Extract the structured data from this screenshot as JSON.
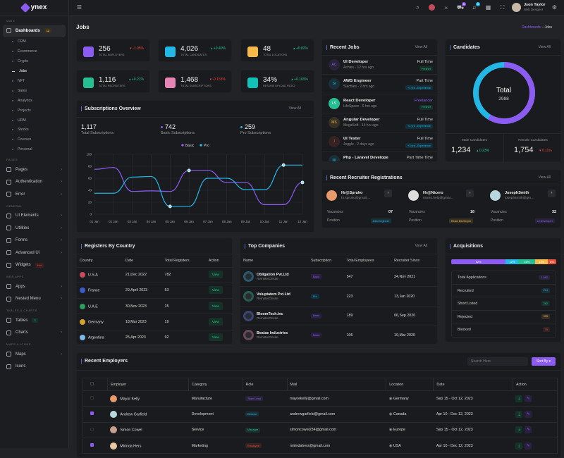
{
  "app": {
    "logo": "ynex",
    "page_title": "Jobs",
    "breadcrumb": [
      "Dashboards",
      "Jobs"
    ]
  },
  "header": {
    "cart_count": "5",
    "notif_count": "5",
    "user_name": "Json Taylor",
    "user_role": "Web Designer"
  },
  "sidebar": {
    "sections": [
      "MAIN",
      "PAGES",
      "GENERAL",
      "WEB APPS",
      "TABLES & CHARTS",
      "MAPS & ICONS"
    ],
    "dashboards": {
      "label": "Dashboards",
      "badge": "12"
    },
    "dash_items": [
      "CRM",
      "Ecommerce",
      "Crypto",
      "Jobs",
      "NFT",
      "Sales",
      "Analytics",
      "Projects",
      "HRM",
      "Stocks",
      "Courses",
      "Personal"
    ],
    "pages": [
      "Pages",
      "Authentication",
      "Error"
    ],
    "general": [
      "UI Elements",
      "Utilities",
      "Forms",
      "Advanced Ui",
      "Widgets"
    ],
    "widgets_badge": "Hot",
    "webapps": [
      "Apps",
      "Nested Menu"
    ],
    "tables": [
      "Tables",
      "Charts"
    ],
    "tables_badge": "3",
    "maps": [
      "Maps",
      "Icons"
    ]
  },
  "stats": [
    {
      "value": "256",
      "label": "TOTAL EMPLOYERS",
      "change": "-1.05%",
      "dir": "down",
      "color": "#8c5cf2"
    },
    {
      "value": "4,026",
      "label": "TOTAL CANDIDATES",
      "change": "+0.40%",
      "dir": "up",
      "color": "#23b7e5"
    },
    {
      "value": "48",
      "label": "TOTAL LOCATIONS",
      "change": "+0.82%",
      "dir": "up",
      "color": "#f5b849"
    },
    {
      "value": "1,116",
      "label": "TOTAL RECRUITERS",
      "change": "+0.21%",
      "dir": "up",
      "color": "#26bf94"
    },
    {
      "value": "1,468",
      "label": "TOTAL SUBSCRIPTIONS",
      "change": "-0.153%",
      "dir": "down",
      "color": "#e685b5"
    },
    {
      "value": "34%",
      "label": "RESUME UPLOAD RATIO",
      "change": "+0.165%",
      "dir": "up",
      "color": "#12c2b9"
    }
  ],
  "subscriptions": {
    "title": "Subscriptions Overview",
    "view_all": "View All",
    "summary": [
      {
        "value": "1,117",
        "label": "Total Subscriptions"
      },
      {
        "value": "742",
        "label": "Basic Subscriptions"
      },
      {
        "value": "259",
        "label": "Pro Subscriptions"
      }
    ]
  },
  "chart_data": {
    "type": "line",
    "categories": [
      "01 Jan",
      "02 Jan",
      "03 Jan",
      "04 Jan",
      "05 Jan",
      "06 Jan",
      "07 Jan",
      "08 Jan",
      "09 Jan",
      "10 Jan",
      "11 Jan",
      "12 Jan"
    ],
    "yticks": [
      "0",
      "20",
      "40",
      "60",
      "80",
      "100"
    ],
    "ylim": [
      0,
      100
    ],
    "grid": true,
    "legend": "top-center",
    "series": [
      {
        "name": "Basic",
        "color": "#8c5cf2",
        "values": [
          75,
          78,
          38,
          39,
          38,
          73,
          73,
          53,
          53,
          16,
          16,
          53
        ]
      },
      {
        "name": "Pro",
        "color": "#23b7e5",
        "values": [
          35,
          35,
          62,
          63,
          13,
          13,
          60,
          60,
          41,
          41,
          82,
          82
        ]
      }
    ]
  },
  "recent_jobs": {
    "title": "Recent Jobs",
    "view_all": "View All",
    "items": [
      {
        "initials": "AC",
        "title": "UI Developer",
        "meta": "Achies - 12 hrs ago",
        "type": "Full Time",
        "tag": "Fresher",
        "color": "#8c5cf2"
      },
      {
        "initials": "SI",
        "title": "AWS Engineer",
        "meta": "Slachies - 2 hrs ago",
        "type": "Part Time",
        "tag": "+1 yrs - Experience",
        "color": "#23b7e5"
      },
      {
        "initials": "LS",
        "title": "React Developer",
        "meta": "LifeSpace - 6 hrs ago",
        "type": "Freelancer",
        "tag": "Fresher",
        "color": "#26bf94"
      },
      {
        "initials": "MS",
        "title": "Angular Developer",
        "meta": "MegaSoft - 14 hrs ago",
        "type": "Full Time",
        "tag": "+2 yrs - Experience",
        "color": "#f5b849"
      },
      {
        "initials": "J",
        "title": "UI Tester",
        "meta": "Joggle - 2 days ago",
        "type": "Full Time",
        "tag": "+3 yrs - Experience",
        "color": "#e6533c"
      },
      {
        "initials": "NI",
        "title": "Php - Laravel Develope",
        "meta": "",
        "type": "Part Time Time",
        "tag": "",
        "color": "#23b7e5"
      }
    ]
  },
  "candidates": {
    "title": "Candidates",
    "view_all": "View All",
    "total_label": "Total",
    "total": "2988",
    "male": {
      "label": "Male Candidates",
      "value": "1,234",
      "change": "0.23%"
    },
    "female": {
      "label": "Female Candidates",
      "value": "1,754",
      "change": "0.11%"
    }
  },
  "recruiters": {
    "title": "Recent Recruiter Registrations",
    "view_all": "View All",
    "vacancies_label": "Vacancies",
    "position_label": "Position",
    "items": [
      {
        "name": "Hr@Spruko",
        "email": "hr.spruko@gmail....",
        "vacancies": "07",
        "position": "Aws Engineer",
        "color": "#23b7e5"
      },
      {
        "name": "Hr@Nicero",
        "email": "nicero.help@gmai...",
        "vacancies": "16",
        "position": "React Developer",
        "color": "#f5b849"
      },
      {
        "name": "JosephSmith",
        "email": "josephsmith@gm...",
        "vacancies": "32",
        "position": "UI Developer",
        "color": "#8c5cf2"
      }
    ]
  },
  "registers": {
    "title": "Registers By Country",
    "columns": [
      "Country",
      "Date",
      "Total Registers",
      "Action"
    ],
    "action_label": "View",
    "rows": [
      {
        "country": "U.S.A",
        "date": "21,Dec 2022",
        "total": "782"
      },
      {
        "country": "France",
        "date": "29,April 2023",
        "total": "53"
      },
      {
        "country": "U.A.E",
        "date": "30,Nov 2023",
        "total": "15"
      },
      {
        "country": "Germany",
        "date": "18,Mar 2023",
        "total": "19"
      },
      {
        "country": "Argentina",
        "date": "25,Apr 2023",
        "total": "92"
      }
    ]
  },
  "companies": {
    "title": "Top Companies",
    "view_all": "View All",
    "columns": [
      "Name",
      "Subscription",
      "Total Employees",
      "Recruiter Since"
    ],
    "rows": [
      {
        "name": "Obligation Pvt.Ltd",
        "sub": "Remote/Onsite",
        "plan": "Basic",
        "employees": "547",
        "since": "24,Nov 2021"
      },
      {
        "name": "Voluptatem Pvt.Ltd",
        "sub": "Remote/Onsite",
        "plan": "Pro",
        "employees": "223",
        "since": "13,Jan 2020"
      },
      {
        "name": "BloomTech.Inc",
        "sub": "Remote/Onsite",
        "plan": "Basic",
        "employees": "189",
        "since": "06,Sep 2020"
      },
      {
        "name": "Beatae Industries",
        "sub": "Remote/Onsite",
        "plan": "Basic",
        "employees": "106",
        "since": "19,Mar 2020"
      }
    ]
  },
  "acquisitions": {
    "title": "Acquisitions",
    "bar": [
      {
        "pct": 52,
        "label": "52%",
        "color": "#8c5cf2"
      },
      {
        "pct": 12,
        "label": "12%",
        "color": "#23b7e5"
      },
      {
        "pct": 16,
        "label": "16%",
        "color": "#26bf94"
      },
      {
        "pct": 12,
        "label": "12%",
        "color": "#f5b849"
      },
      {
        "pct": 8,
        "label": "8%",
        "color": "#e6533c"
      }
    ],
    "rows": [
      {
        "label": "Total Applications",
        "value": "1,982",
        "color": "#8c5cf2"
      },
      {
        "label": "Recruited",
        "value": "214",
        "color": "#23b7e5"
      },
      {
        "label": "Short Listed",
        "value": "262",
        "color": "#26bf94"
      },
      {
        "label": "Rejected",
        "value": "395",
        "color": "#f5b849"
      },
      {
        "label": "Blocked",
        "value": "79",
        "color": "#e6533c"
      }
    ]
  },
  "employers": {
    "title": "Recent Employers",
    "search_placeholder": "Search Here",
    "sort_label": "Sort By",
    "columns": [
      "",
      "Employer",
      "Category",
      "Role",
      "Mail",
      "Location",
      "Date",
      "Action"
    ],
    "rows": [
      {
        "checked": false,
        "name": "Mayor Kelly",
        "category": "Manufacture",
        "role": "Team Lead",
        "role_color": "#8c5cf2",
        "mail": "mayorkelly@gmail.com",
        "location": "Germany",
        "date": "Sep 15 - Oct 12, 2023"
      },
      {
        "checked": true,
        "name": "Andrew Garfield",
        "category": "Development",
        "role": "Director",
        "role_color": "#23b7e5",
        "mail": "andrewgarfield@gmail.com",
        "location": "Canada",
        "date": "Apr 10 - Dec 12, 2023"
      },
      {
        "checked": false,
        "name": "Simon Cowel",
        "category": "Service",
        "role": "Manager",
        "role_color": "#26bf94",
        "mail": "simoncowel234@gmail.com",
        "location": "Europe",
        "date": "Sep 15 - Oct 12, 2023"
      },
      {
        "checked": true,
        "name": "Mirinda Hers",
        "category": "Marketing",
        "role": "Employee",
        "role_color": "#e6533c",
        "mail": "mirindahers@gmail.com",
        "location": "USA",
        "date": "Apr 10 - Dec 12, 2023"
      }
    ]
  }
}
